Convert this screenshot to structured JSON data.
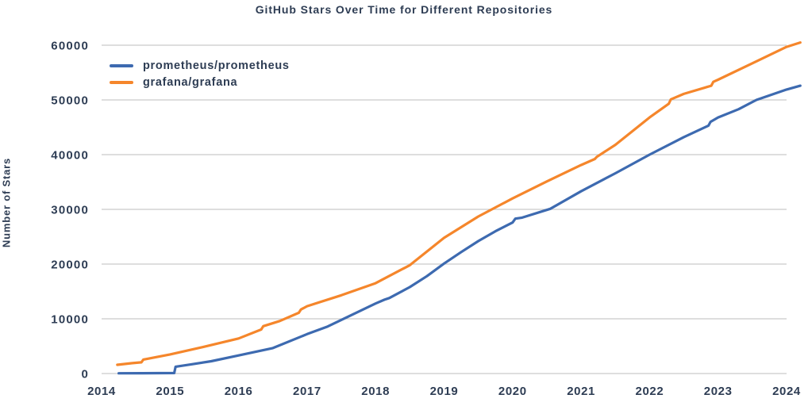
{
  "colors": {
    "text": "#2e3d54",
    "grid": "#c9c9c9",
    "background": "#ffffff",
    "prometheus_blue": "#3d6ab0",
    "grafana_orange": "#f5862b"
  },
  "chart_data": {
    "type": "line",
    "title": "GitHub Stars Over Time for Different Repositories",
    "xlabel": "",
    "ylabel": "Number of Stars",
    "x_ticks": [
      2014,
      2015,
      2016,
      2017,
      2018,
      2019,
      2020,
      2021,
      2022,
      2023,
      2024
    ],
    "y_ticks": [
      0,
      10000,
      20000,
      30000,
      40000,
      50000,
      60000
    ],
    "x_range": [
      2014.0,
      2024.2
    ],
    "y_range": [
      0,
      62000
    ],
    "grid": "horizontal-only",
    "legend_position": "upper-left",
    "series": [
      {
        "name": "prometheus/prometheus",
        "color": "#3d6ab0",
        "points": [
          [
            2014.25,
            40
          ],
          [
            2014.6,
            60
          ],
          [
            2015.06,
            90
          ],
          [
            2015.08,
            1250
          ],
          [
            2015.3,
            1650
          ],
          [
            2015.6,
            2250
          ],
          [
            2016.0,
            3300
          ],
          [
            2016.5,
            4650
          ],
          [
            2017.0,
            7200
          ],
          [
            2017.3,
            8600
          ],
          [
            2017.55,
            10100
          ],
          [
            2018.0,
            12800
          ],
          [
            2018.13,
            13500
          ],
          [
            2018.2,
            13800
          ],
          [
            2018.5,
            15800
          ],
          [
            2018.75,
            17800
          ],
          [
            2019.0,
            20100
          ],
          [
            2019.25,
            22200
          ],
          [
            2019.5,
            24200
          ],
          [
            2019.75,
            26000
          ],
          [
            2020.0,
            27600
          ],
          [
            2020.04,
            28300
          ],
          [
            2020.14,
            28500
          ],
          [
            2020.55,
            30100
          ],
          [
            2021.0,
            33300
          ],
          [
            2021.5,
            36600
          ],
          [
            2022.0,
            40000
          ],
          [
            2022.5,
            43200
          ],
          [
            2022.86,
            45300
          ],
          [
            2022.89,
            46000
          ],
          [
            2023.0,
            46800
          ],
          [
            2023.3,
            48300
          ],
          [
            2023.56,
            50000
          ],
          [
            2024.0,
            51900
          ],
          [
            2024.2,
            52600
          ]
        ]
      },
      {
        "name": "grafana/grafana",
        "color": "#f5862b",
        "points": [
          [
            2014.23,
            1600
          ],
          [
            2014.45,
            1900
          ],
          [
            2014.58,
            2050
          ],
          [
            2014.61,
            2550
          ],
          [
            2015.0,
            3500
          ],
          [
            2015.5,
            4900
          ],
          [
            2016.0,
            6400
          ],
          [
            2016.33,
            8050
          ],
          [
            2016.36,
            8650
          ],
          [
            2016.6,
            9600
          ],
          [
            2016.88,
            11100
          ],
          [
            2016.91,
            11700
          ],
          [
            2017.0,
            12300
          ],
          [
            2017.5,
            14300
          ],
          [
            2018.0,
            16500
          ],
          [
            2018.5,
            19800
          ],
          [
            2019.0,
            24800
          ],
          [
            2019.5,
            28700
          ],
          [
            2020.0,
            32000
          ],
          [
            2020.5,
            35100
          ],
          [
            2021.0,
            38100
          ],
          [
            2021.2,
            39200
          ],
          [
            2021.23,
            39600
          ],
          [
            2021.5,
            41800
          ],
          [
            2022.0,
            46800
          ],
          [
            2022.28,
            49300
          ],
          [
            2022.31,
            50100
          ],
          [
            2022.5,
            51100
          ],
          [
            2022.9,
            52600
          ],
          [
            2022.93,
            53300
          ],
          [
            2023.0,
            53700
          ],
          [
            2023.5,
            56700
          ],
          [
            2024.0,
            59700
          ],
          [
            2024.2,
            60500
          ]
        ]
      }
    ]
  }
}
